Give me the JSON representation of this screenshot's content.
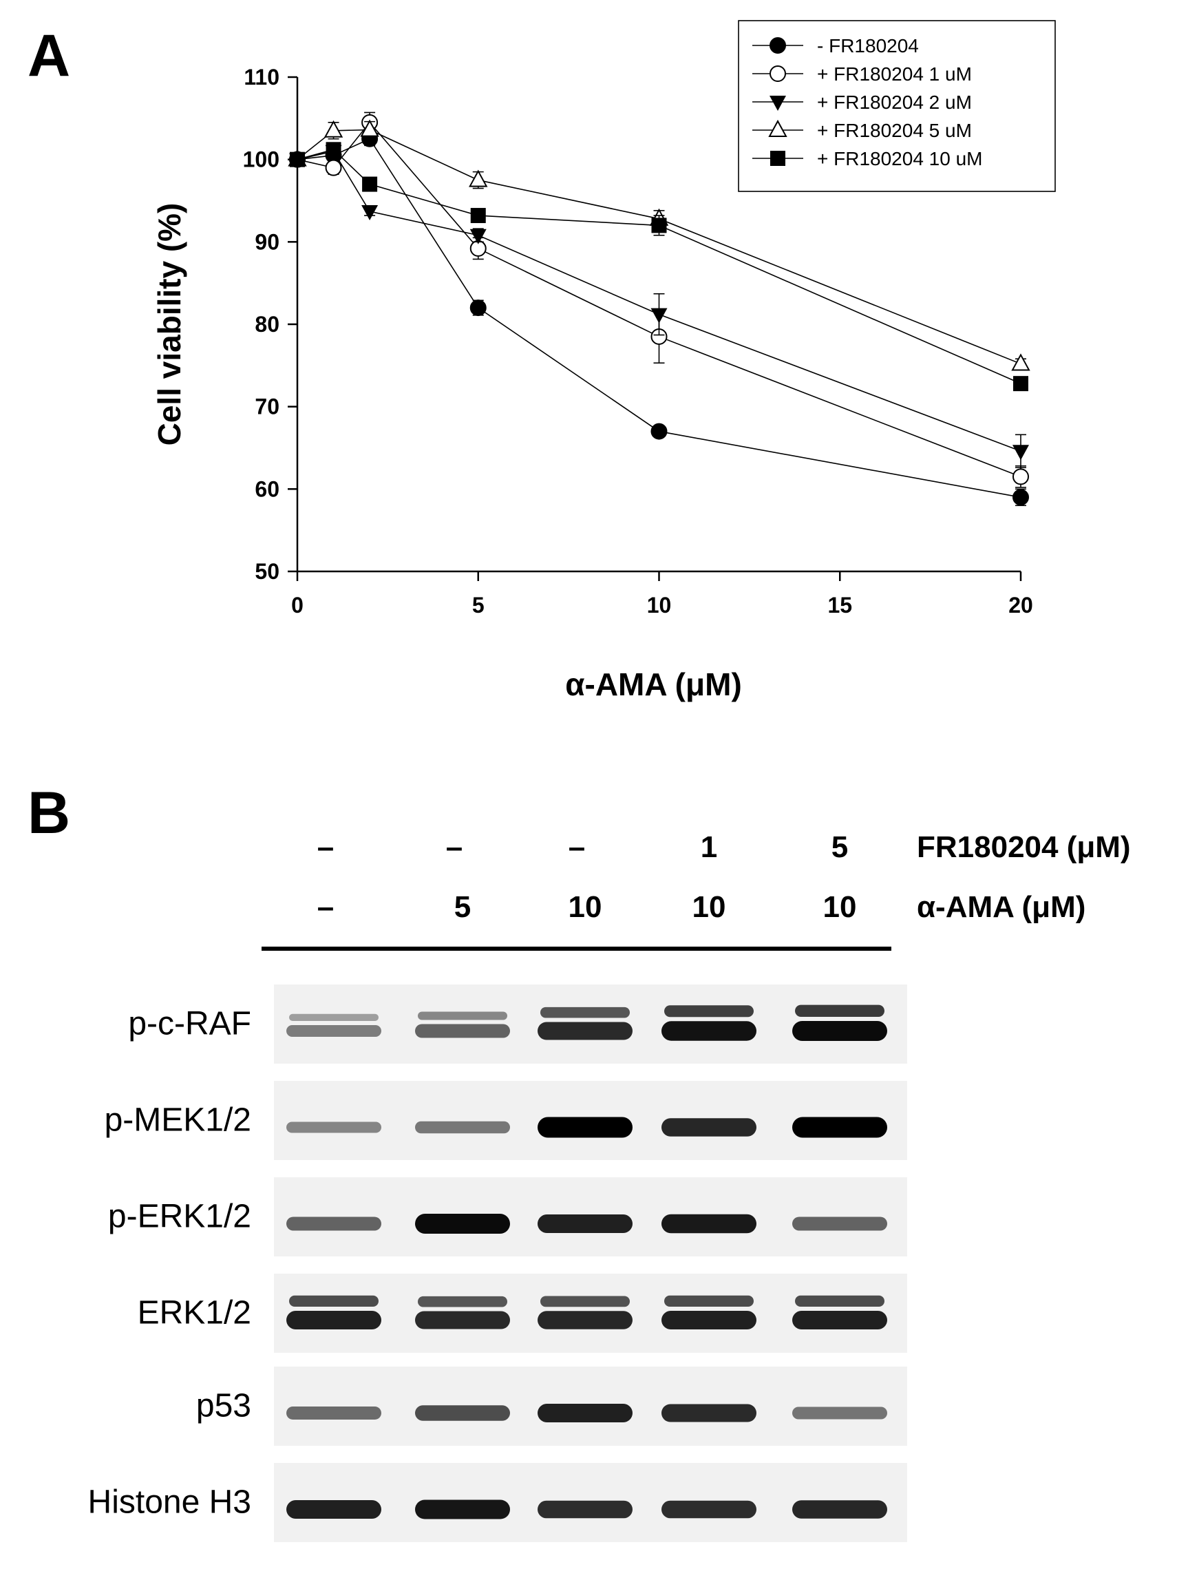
{
  "panels": {
    "a_label": "A",
    "b_label": "B"
  },
  "chart_data": {
    "type": "line",
    "title": "",
    "xlabel": "α-AMA (μM)",
    "ylabel": "Cell viability (%)",
    "xlim": [
      0,
      20
    ],
    "ylim": [
      50,
      110
    ],
    "xticks": [
      0,
      5,
      10,
      15,
      20
    ],
    "xtick_labels": [
      "0",
      "5",
      "10",
      "15",
      "20"
    ],
    "yticks": [
      50,
      60,
      70,
      80,
      90,
      100,
      110
    ],
    "ytick_labels": [
      "50",
      "60",
      "70",
      "80",
      "90",
      "100",
      "110"
    ],
    "grid": false,
    "legend_position": "top-right",
    "series": [
      {
        "name": "- FR180204",
        "marker": "filled-circle",
        "x": [
          0,
          1,
          2,
          5,
          10,
          20
        ],
        "y": [
          100,
          100.5,
          102.5,
          82,
          67,
          59
        ],
        "err": [
          0.8,
          0.6,
          0.8,
          0.9,
          0.6,
          1.0
        ]
      },
      {
        "name": "+ FR180204 1 uM",
        "marker": "open-circle",
        "x": [
          0,
          1,
          2,
          5,
          10,
          20
        ],
        "y": [
          100,
          99,
          104.5,
          89.2,
          78.5,
          61.5
        ],
        "err": [
          0.8,
          0.8,
          1.2,
          1.3,
          3.2,
          1.3
        ]
      },
      {
        "name": "+ FR180204 2 uM",
        "marker": "filled-triangle-down",
        "x": [
          0,
          1,
          2,
          5,
          10,
          20
        ],
        "y": [
          100,
          101,
          93.7,
          90.8,
          81.2,
          64.6
        ],
        "err": [
          0.8,
          0.6,
          0.5,
          0.8,
          2.5,
          2.0
        ]
      },
      {
        "name": "+ FR180204 5 uM",
        "marker": "open-triangle-up",
        "x": [
          0,
          1,
          2,
          5,
          10,
          20
        ],
        "y": [
          100,
          103.5,
          103.6,
          97.5,
          92.8,
          75.2
        ],
        "err": [
          0.8,
          1.0,
          1.0,
          1.0,
          1.0,
          0.6
        ]
      },
      {
        "name": "+ FR180204 10 uM",
        "marker": "filled-square",
        "x": [
          0,
          1,
          2,
          5,
          10,
          20
        ],
        "y": [
          100,
          101.2,
          97,
          93.2,
          92,
          72.8
        ],
        "err": [
          0.8,
          0.6,
          0.6,
          0.8,
          1.2,
          0.6
        ]
      }
    ]
  },
  "blot": {
    "column_headers": {
      "fr180204": [
        "–",
        "–",
        "–",
        "1",
        "5"
      ],
      "fr180204_label": "FR180204 (μM)",
      "ama": [
        "–",
        "5",
        "10",
        "10",
        "10"
      ],
      "ama_label": "α-AMA (μM)"
    },
    "rows": [
      {
        "label": "p-c-RAF",
        "intensity": [
          0.35,
          0.5,
          0.8,
          0.92,
          0.95
        ],
        "double": true
      },
      {
        "label": "p-MEK1/2",
        "intensity": [
          0.3,
          0.38,
          1.0,
          0.82,
          1.0
        ],
        "double": false
      },
      {
        "label": "p-ERK1/2",
        "intensity": [
          0.5,
          0.95,
          0.85,
          0.88,
          0.5
        ],
        "double": false
      },
      {
        "label": "ERK1/2",
        "intensity": [
          0.85,
          0.8,
          0.82,
          0.85,
          0.85
        ],
        "double": true
      },
      {
        "label": "p53",
        "intensity": [
          0.45,
          0.62,
          0.85,
          0.8,
          0.4
        ],
        "double": false
      },
      {
        "label": "Histone H3",
        "intensity": [
          0.85,
          0.9,
          0.78,
          0.78,
          0.82
        ],
        "double": false
      }
    ]
  }
}
